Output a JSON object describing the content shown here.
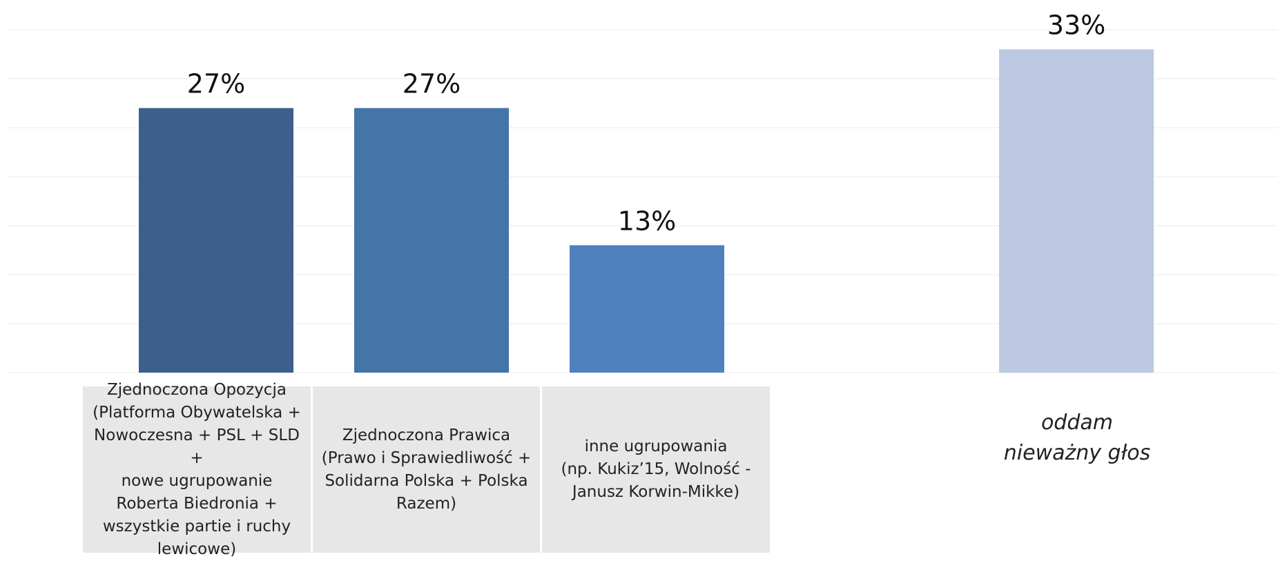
{
  "chart_data": {
    "type": "bar",
    "title": "",
    "xlabel": "",
    "ylabel": "",
    "ylim": [
      0,
      36
    ],
    "grid": true,
    "categories": [
      "Zjednoczona Opozycja\n(Platforma Obywatelska +\nNowoczesna + PSL + SLD +\nnowe ugrupowanie\nRoberta Biedronia +\nwszystkie partie i ruchy\nlewicowe)",
      "Zjednoczona Prawica\n(Prawo i Sprawiedliwość +\nSolidarna Polska + Polska\nRazem)",
      "inne ugrupowania\n(np. Kukiz’15, Wolność -\nJanusz Korwin-Mikke)",
      "oddam\nnieważny głos"
    ],
    "values": [
      27,
      27,
      13,
      33
    ],
    "value_labels": [
      "27%",
      "27%",
      "13%",
      "33%"
    ],
    "colors": [
      "#3c5f8c",
      "#4574a8",
      "#4e81bd",
      "#bcc8e1"
    ]
  }
}
